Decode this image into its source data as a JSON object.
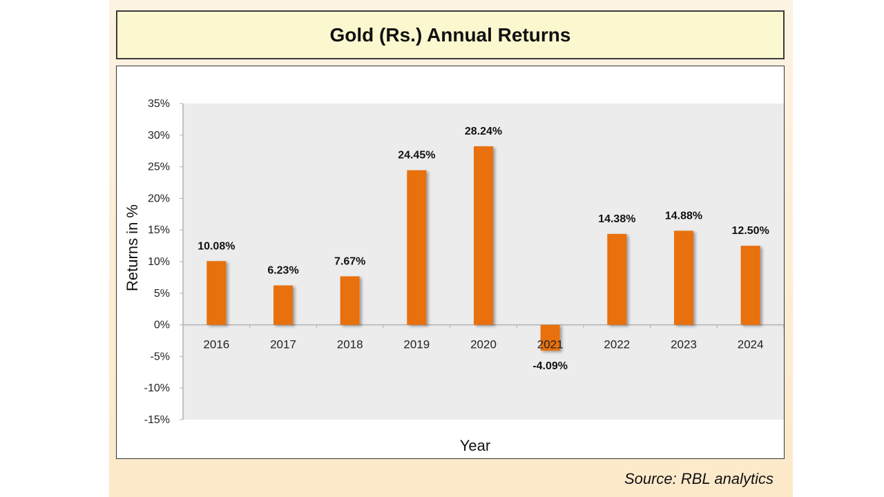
{
  "header": {
    "title": "Gold (Rs.) Annual Returns"
  },
  "footer": {
    "source": "Source: RBL analytics"
  },
  "colors": {
    "bar": "#e8700e",
    "plot_bg": "#ececec",
    "axis": "#b0b0b0"
  },
  "chart_data": {
    "type": "bar",
    "title": "Gold (Rs.) Annual Returns",
    "xlabel": "Year",
    "ylabel": "Returns in %",
    "ylim": [
      -15,
      35
    ],
    "yticks": [
      35,
      30,
      25,
      20,
      15,
      10,
      5,
      0,
      -5,
      -10,
      -15
    ],
    "ytick_labels": [
      "35%",
      "30%",
      "25%",
      "20%",
      "15%",
      "10%",
      "5%",
      "0%",
      "-5%",
      "-10%",
      "-15%"
    ],
    "grid": false,
    "categories": [
      "2016",
      "2017",
      "2018",
      "2019",
      "2020",
      "2021",
      "2022",
      "2023",
      "2024"
    ],
    "values": [
      10.08,
      6.23,
      7.67,
      24.45,
      28.24,
      -4.09,
      14.38,
      14.88,
      12.5
    ],
    "data_labels": [
      "10.08%",
      "6.23%",
      "7.67%",
      "24.45%",
      "28.24%",
      "-4.09%",
      "14.38%",
      "14.88%",
      "12.50%"
    ]
  }
}
